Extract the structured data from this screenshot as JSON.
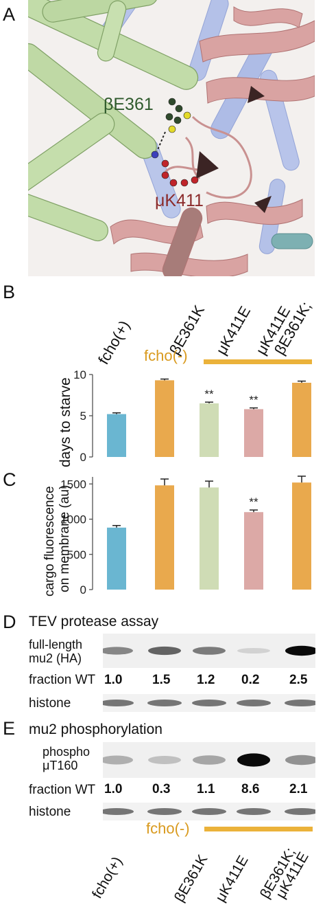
{
  "panels": {
    "a": {
      "letter": "A"
    },
    "b": {
      "letter": "B"
    },
    "c": {
      "letter": "C"
    },
    "d": {
      "letter": "D"
    },
    "e": {
      "letter": "E"
    }
  },
  "structure": {
    "label_beta": "βE361",
    "label_mu": "μK411",
    "colors": {
      "green": "#b8d59e",
      "blue": "#a9b8e2",
      "pink": "#d9a1a0",
      "teal": "#6fa5a8",
      "dark_green_atoms": "#2f4a2c",
      "yellow_atoms": "#e3da2a",
      "red_atoms": "#c0242a",
      "blue_atom": "#3b3fbb"
    }
  },
  "groups": {
    "control": "fcho(+)",
    "mutants": "fcho(-)",
    "bar_color": "#ebb23a"
  },
  "conditions": [
    "fcho(+)",
    "βE361K",
    "μK411E",
    "μK411E",
    "βE361K;"
  ],
  "chart_data": [
    {
      "type": "bar",
      "categories": [
        "fcho(+)",
        "βE361K",
        "μK411E",
        "βE361K; μK411E (label)",
        "βE361K; μK411E"
      ],
      "values": [
        5.2,
        9.3,
        6.5,
        5.8,
        9.0
      ],
      "errors": [
        0.15,
        0.15,
        0.15,
        0.15,
        0.2
      ],
      "significance": [
        "",
        "",
        "**",
        "**",
        ""
      ],
      "colors": [
        "#6ab6d1",
        "#e9a94d",
        "#cfdcb5",
        "#dca9a6",
        "#e9a94d"
      ],
      "ylabel": "days to starve",
      "ylim": [
        0,
        10
      ],
      "yticks": [
        0,
        5,
        10
      ],
      "sig_labels": [
        "**",
        "**"
      ]
    },
    {
      "type": "bar",
      "categories": [
        "fcho(+)",
        "βE361K",
        "μK411E",
        "βE361K; μK411E (label)",
        "βE361K; μK411E"
      ],
      "values": [
        880,
        1480,
        1450,
        1100,
        1520
      ],
      "errors": [
        30,
        90,
        90,
        30,
        90
      ],
      "significance": [
        "",
        "",
        "",
        "**",
        ""
      ],
      "colors": [
        "#6ab6d1",
        "#e9a94d",
        "#cfdcb5",
        "#dca9a6",
        "#e9a94d"
      ],
      "ylabel_line1": "cargo fluorescence",
      "ylabel_line2": "on membrane (au)",
      "ylim": [
        0,
        1600
      ],
      "yticks": [
        0,
        500,
        1000,
        1500
      ],
      "sig_labels": [
        "**"
      ]
    }
  ],
  "tev": {
    "title": "TEV protease assay",
    "row_label_line1": "full-length",
    "row_label_line2": "mu2 (HA)",
    "fraction_label": "fraction WT",
    "fractions": [
      "1.0",
      "1.5",
      "1.2",
      "0.2",
      "2.5"
    ],
    "band_intensity": [
      0.55,
      0.7,
      0.6,
      0.12,
      1.0
    ],
    "histone_label": "histone"
  },
  "phospho": {
    "title": "mu2 phosphorylation",
    "row_label_line1": "phospho",
    "row_label_line2": "μT160",
    "fraction_label": "fraction WT",
    "fractions": [
      "1.0",
      "0.3",
      "1.1",
      "8.6",
      "2.1"
    ],
    "band_intensity": [
      0.35,
      0.25,
      0.4,
      1.0,
      0.5
    ],
    "histone_label": "histone"
  },
  "bottom_labels": {
    "control": "fcho(+)",
    "beta": "βE361K",
    "mu": "μK411E",
    "double_line1": "βE361K;",
    "double_line2": "μK411E",
    "mutants": "fcho(-)"
  }
}
